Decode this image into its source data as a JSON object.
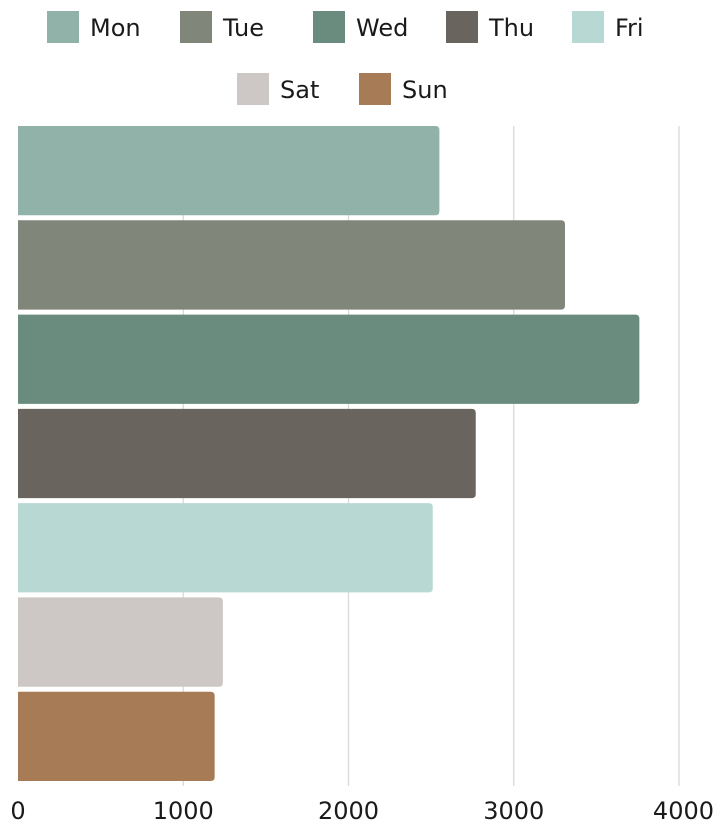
{
  "chart_data": {
    "type": "bar",
    "orientation": "horizontal",
    "series": [
      {
        "name": "Mon",
        "value": 2550,
        "color": "#90b2a8"
      },
      {
        "name": "Tue",
        "value": 3310,
        "color": "#80877a"
      },
      {
        "name": "Wed",
        "value": 3760,
        "color": "#6a8c7e"
      },
      {
        "name": "Thu",
        "value": 2770,
        "color": "#69645d"
      },
      {
        "name": "Fri",
        "value": 2510,
        "color": "#b8d9d3"
      },
      {
        "name": "Sat",
        "value": 1240,
        "color": "#cdc8c6"
      },
      {
        "name": "Sun",
        "value": 1190,
        "color": "#a67b56"
      }
    ],
    "xlim": [
      0,
      4000
    ],
    "x_ticks": [
      "0",
      "1000",
      "2000",
      "3000",
      "4000"
    ],
    "grid": true,
    "legend_position": "top"
  }
}
